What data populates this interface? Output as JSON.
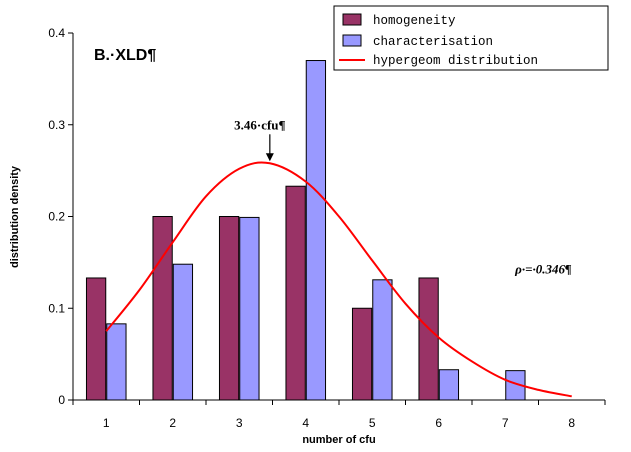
{
  "chart_data": {
    "type": "bar",
    "panel_label": "B.·XLD¶",
    "xlabel": "number of cfu",
    "ylabel": "distribution density",
    "xlim": [
      0.5,
      8.5
    ],
    "ylim": [
      0,
      0.4
    ],
    "x_ticks": [
      "1",
      "2",
      "3",
      "4",
      "5",
      "6",
      "7",
      "8"
    ],
    "y_ticks": [
      "0",
      "0.1",
      "0.2",
      "0.3",
      "0.4"
    ],
    "grid": false,
    "legend_position": "top-right",
    "series": [
      {
        "name": "homogeneity",
        "kind": "bar",
        "color": "#993366",
        "x": [
          1,
          2,
          3,
          4,
          5,
          6
        ],
        "values": [
          0.133,
          0.2,
          0.2,
          0.233,
          0.1,
          0.133
        ]
      },
      {
        "name": "characterisation",
        "kind": "bar",
        "color": "#9999ff",
        "x": [
          1,
          2,
          3,
          4,
          5,
          6,
          7
        ],
        "values": [
          0.083,
          0.148,
          0.199,
          0.37,
          0.131,
          0.033,
          0.032
        ]
      },
      {
        "name": "hypergeom distribution",
        "kind": "line",
        "color": "#ff0000",
        "x": [
          1,
          1.5,
          2,
          2.5,
          3,
          3.46,
          4,
          4.5,
          5,
          5.5,
          6,
          6.5,
          7,
          7.5,
          8
        ],
        "values": [
          0.075,
          0.12,
          0.172,
          0.222,
          0.252,
          0.258,
          0.238,
          0.2,
          0.152,
          0.105,
          0.068,
          0.042,
          0.022,
          0.011,
          0.004
        ]
      }
    ],
    "annotations": [
      {
        "text": "3.46·cfu¶",
        "x": 3.46,
        "y": 0.258,
        "arrow": true
      },
      {
        "text": "ρ·=·0.346¶",
        "x": 7.6,
        "y": 0.138,
        "arrow": false
      }
    ]
  }
}
